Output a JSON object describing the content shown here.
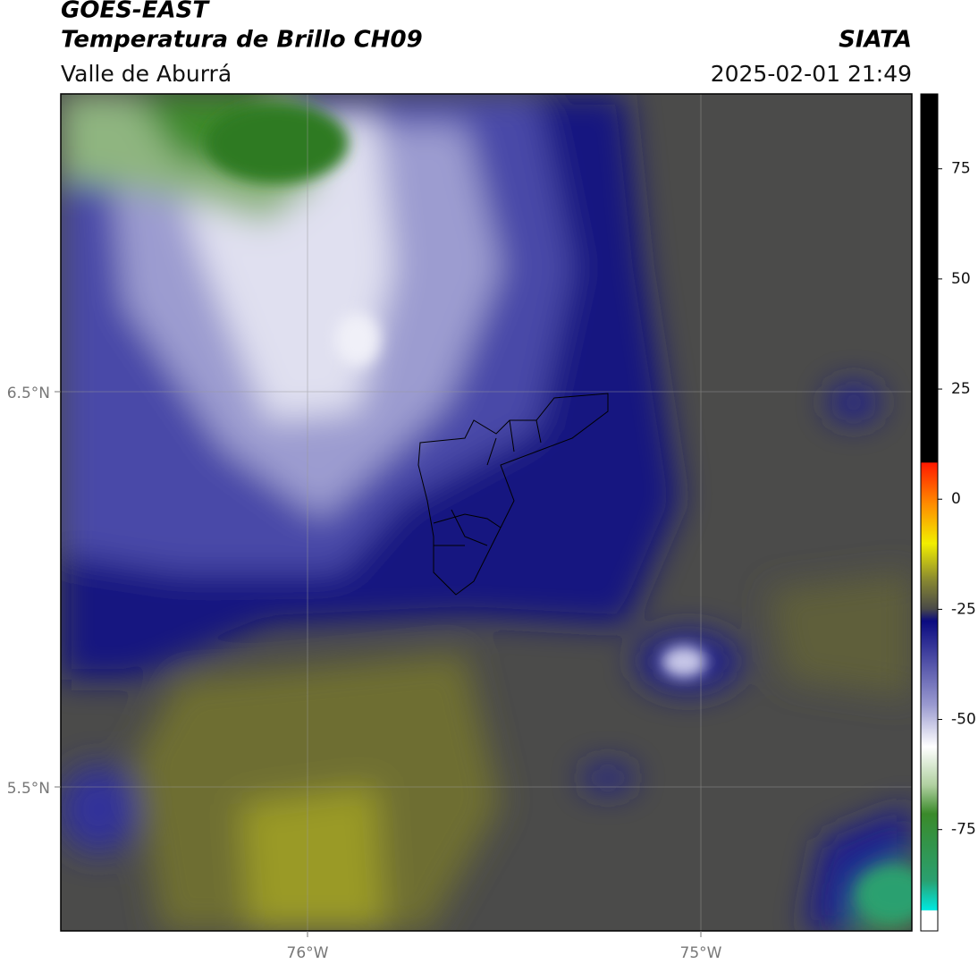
{
  "header": {
    "title": "GOES-EAST",
    "subtitle": "Temperatura de Brillo CH09",
    "region": "Valle de Aburrá",
    "source": "SIATA",
    "datetime": "2025-02-01 21:49"
  },
  "map": {
    "longitude_labels": [
      "76°W",
      "75°W"
    ],
    "latitude_labels": [
      "6.5°N",
      "5.5°N"
    ]
  },
  "colorbar": {
    "range": [
      -98,
      92
    ],
    "ticks": [
      75,
      50,
      25,
      0,
      -25,
      -50,
      -75
    ]
  }
}
